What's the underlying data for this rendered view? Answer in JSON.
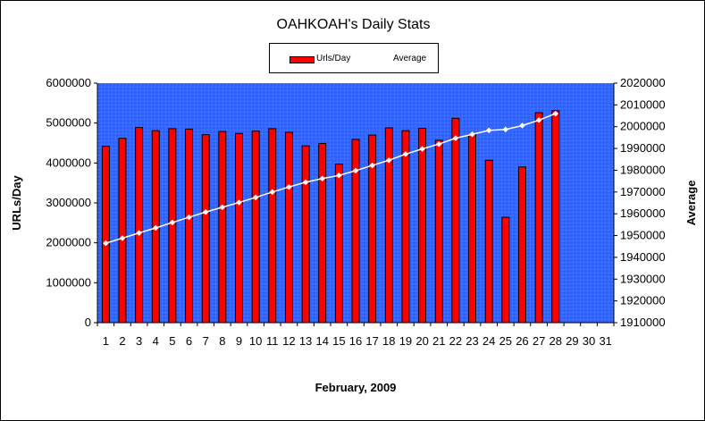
{
  "chart_data": {
    "type": "bar",
    "title": "OAHKOAH's Daily Stats",
    "xlabel": "February, 2009",
    "ylabel": "URLs/Day",
    "y2label": "Average",
    "categories": [
      "1",
      "2",
      "3",
      "4",
      "5",
      "6",
      "7",
      "8",
      "9",
      "10",
      "11",
      "12",
      "13",
      "14",
      "15",
      "16",
      "17",
      "18",
      "19",
      "20",
      "21",
      "22",
      "23",
      "24",
      "25",
      "26",
      "27",
      "28",
      "29",
      "30",
      "31"
    ],
    "ylim": [
      0,
      6000000
    ],
    "yticks": [
      "0",
      "1000000",
      "2000000",
      "3000000",
      "4000000",
      "5000000",
      "6000000"
    ],
    "y2lim": [
      1910000,
      2020000
    ],
    "y2ticks": [
      "1910000",
      "1920000",
      "1930000",
      "1940000",
      "1950000",
      "1960000",
      "1970000",
      "1980000",
      "1990000",
      "2000000",
      "2010000",
      "2020000"
    ],
    "grid": false,
    "legend": "top",
    "colors": {
      "bars": "#ff0000",
      "line": "#ffffff",
      "plot_bg": "#3366ff"
    },
    "series": [
      {
        "name": "Urls/Day",
        "type": "bar",
        "axis": "left",
        "values": [
          4420000,
          4620000,
          4890000,
          4810000,
          4860000,
          4850000,
          4710000,
          4790000,
          4740000,
          4800000,
          4860000,
          4770000,
          4430000,
          4490000,
          3970000,
          4590000,
          4700000,
          4880000,
          4810000,
          4870000,
          4570000,
          5120000,
          4710000,
          4070000,
          2640000,
          3900000,
          5260000,
          5310000,
          null,
          null,
          null
        ]
      },
      {
        "name": "Average",
        "type": "line",
        "axis": "right",
        "values": [
          1946500,
          1948800,
          1951200,
          1953500,
          1956000,
          1958400,
          1960800,
          1963000,
          1965200,
          1967500,
          1970000,
          1972300,
          1974500,
          1976200,
          1977600,
          1979800,
          1982200,
          1984600,
          1987400,
          1989800,
          1992000,
          1994700,
          1996500,
          1998300,
          1998700,
          2000500,
          2003000,
          2006000,
          null,
          null,
          null
        ]
      }
    ]
  }
}
